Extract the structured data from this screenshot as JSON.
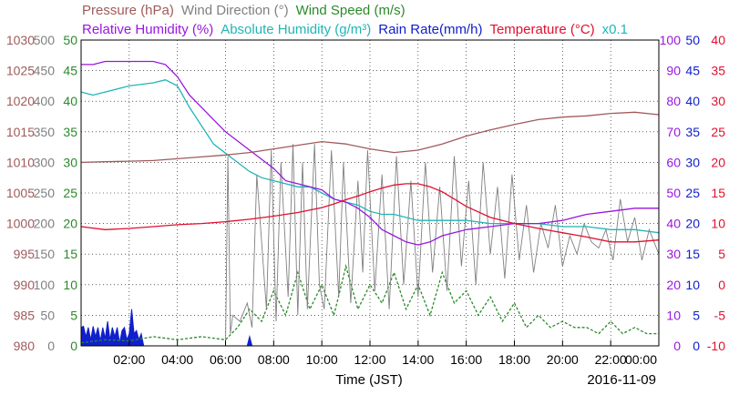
{
  "chart_data": {
    "type": "line",
    "xlabel": "Time (JST)",
    "date_label": "2016-11-09",
    "x_ticks": [
      "02:00",
      "04:00",
      "06:00",
      "08:00",
      "10:00",
      "12:00",
      "14:00",
      "16:00",
      "18:00",
      "20:00",
      "22:00",
      "00:00"
    ],
    "x_range_hours": [
      0,
      24
    ],
    "legend_row1": [
      {
        "text": "Pressure (hPa)",
        "color": "#a05a5a"
      },
      {
        "text": "Wind Direction (°)",
        "color": "#808080"
      },
      {
        "text": "Wind Speed (m/s)",
        "color": "#2a8a2a"
      }
    ],
    "legend_row2": [
      {
        "text": "Relative Humidity (%)",
        "color": "#9a16e0"
      },
      {
        "text": "Absolute Humidity (g/m³)",
        "color": "#22b5b5"
      },
      {
        "text": "Rain Rate(mm/h)",
        "color": "#1020cc"
      },
      {
        "text": "Temperature (°C)",
        "color": "#e01030"
      },
      {
        "text": "x0.1",
        "color": "#22b5b5"
      }
    ],
    "left_axes": [
      {
        "name": "pressure",
        "color": "#a05a5a",
        "ticks": [
          "1030",
          "1025",
          "1020",
          "1015",
          "1010",
          "1005",
          "1000",
          "995",
          "990",
          "985",
          "980"
        ],
        "range": [
          980,
          1030
        ]
      },
      {
        "name": "wind-direction",
        "color": "#808080",
        "ticks": [
          "500",
          "450",
          "400",
          "350",
          "300",
          "250",
          "200",
          "150",
          "100",
          "50",
          "0"
        ],
        "range": [
          0,
          500
        ]
      },
      {
        "name": "wind-speed",
        "color": "#2a8a2a",
        "ticks": [
          "50",
          "45",
          "40",
          "35",
          "30",
          "25",
          "20",
          "15",
          "10",
          "5",
          "0"
        ],
        "range": [
          0,
          50
        ]
      }
    ],
    "right_axes": [
      {
        "name": "humidity",
        "color": "#9a16e0",
        "ticks": [
          "100",
          "90",
          "80",
          "70",
          "60",
          "50",
          "40",
          "30",
          "20",
          "10",
          "0"
        ],
        "range": [
          0,
          100
        ]
      },
      {
        "name": "rain-rate",
        "color": "#1020cc",
        "ticks": [
          "50",
          "45",
          "40",
          "35",
          "30",
          "25",
          "20",
          "15",
          "10",
          "5",
          "0"
        ],
        "range": [
          0,
          50
        ]
      },
      {
        "name": "temperature",
        "color": "#e01030",
        "ticks": [
          "40",
          "35",
          "30",
          "25",
          "20",
          "15",
          "10",
          "5",
          "0",
          "-5",
          "-10"
        ],
        "range": [
          -10,
          40
        ]
      }
    ],
    "grid": true,
    "series": [
      {
        "name": "Pressure (hPa)",
        "axis": "pressure",
        "color": "#a05a5a",
        "style": "solid",
        "x": [
          0,
          1,
          2,
          3,
          4,
          5,
          6,
          7,
          8,
          9,
          10,
          11,
          12,
          13,
          14,
          15,
          16,
          17,
          18,
          19,
          20,
          21,
          22,
          23,
          24
        ],
        "y": [
          1010.0,
          1010.1,
          1010.2,
          1010.3,
          1010.6,
          1010.9,
          1011.2,
          1011.6,
          1012.2,
          1012.8,
          1013.4,
          1013.0,
          1012.2,
          1011.6,
          1012.0,
          1013.0,
          1014.3,
          1015.3,
          1016.2,
          1017.0,
          1017.4,
          1017.6,
          1018.0,
          1018.2,
          1017.8
        ]
      },
      {
        "name": "Relative Humidity (%)",
        "axis": "humidity",
        "color": "#9a16e0",
        "style": "solid",
        "x": [
          0,
          0.5,
          1,
          2,
          3,
          3.5,
          4,
          4.5,
          5,
          5.5,
          6,
          6.5,
          7,
          7.5,
          8,
          8.5,
          9,
          9.5,
          10,
          10.5,
          11,
          11.5,
          12,
          12.5,
          13,
          13.5,
          14,
          14.5,
          15,
          16,
          17,
          18,
          19,
          20,
          21,
          22,
          23,
          24
        ],
        "y": [
          92,
          92,
          93,
          93,
          93,
          92,
          88,
          82,
          78,
          74,
          70,
          67,
          64,
          61,
          58,
          54,
          53,
          52,
          51,
          48,
          47,
          45,
          42,
          38,
          36,
          34,
          33,
          34,
          36,
          38,
          39,
          40,
          40,
          41,
          43,
          44,
          45,
          45
        ]
      },
      {
        "name": "Absolute Humidity (g/m³)",
        "axis": "humidity",
        "color": "#22b5b5",
        "style": "solid",
        "x": [
          0,
          0.5,
          1,
          2,
          3,
          3.5,
          4,
          4.5,
          5,
          5.5,
          6,
          6.5,
          7,
          7.5,
          8,
          8.5,
          9,
          9.5,
          10,
          10.5,
          11,
          11.5,
          12,
          12.5,
          13,
          13.5,
          14,
          14.5,
          15,
          16,
          17,
          18,
          19,
          20,
          21,
          22,
          23,
          24
        ],
        "y": [
          83,
          82,
          83,
          85,
          86,
          87,
          85,
          78,
          72,
          66,
          63,
          60,
          57,
          55,
          54,
          53,
          52,
          52,
          50,
          48,
          47,
          46,
          44,
          43,
          43,
          42,
          41,
          41,
          41,
          41,
          40,
          40,
          40,
          39,
          39,
          38,
          38,
          37
        ]
      },
      {
        "name": "Temperature (°C)",
        "axis": "temperature",
        "color": "#e01030",
        "style": "solid",
        "x": [
          0,
          1,
          2,
          3,
          4,
          5,
          6,
          7,
          8,
          9,
          10,
          10.5,
          11,
          11.5,
          12,
          12.5,
          13,
          13.5,
          14,
          14.5,
          15,
          15.5,
          16,
          17,
          18,
          19,
          20,
          21,
          22,
          23,
          24
        ],
        "y": [
          9.5,
          9.0,
          9.2,
          9.5,
          9.8,
          10.0,
          10.3,
          10.7,
          11.2,
          11.8,
          12.6,
          13.2,
          13.9,
          14.5,
          15.2,
          15.8,
          16.3,
          16.5,
          16.5,
          16.0,
          15.2,
          14.0,
          12.8,
          11.0,
          10.0,
          9.2,
          8.5,
          7.8,
          7.0,
          7.0,
          7.3
        ]
      },
      {
        "name": "Wind Direction (°)",
        "axis": "wind-direction",
        "color": "#808080",
        "style": "solid",
        "x": [
          0,
          6.0,
          6.1,
          6.2,
          6.3,
          6.6,
          6.9,
          7.1,
          7.3,
          7.7,
          7.9,
          8.1,
          8.3,
          8.6,
          8.8,
          9.0,
          9.2,
          9.4,
          9.7,
          9.9,
          10.1,
          10.4,
          10.7,
          10.9,
          11.2,
          11.5,
          11.7,
          11.9,
          12.2,
          12.5,
          12.8,
          13.1,
          13.4,
          13.7,
          14.0,
          14.3,
          14.6,
          14.9,
          15.2,
          15.5,
          15.8,
          16.1,
          16.4,
          16.7,
          17.0,
          17.3,
          17.6,
          17.9,
          18.2,
          18.5,
          18.8,
          19.1,
          19.4,
          19.7,
          20.0,
          20.3,
          20.6,
          20.9,
          21.2,
          21.5,
          21.8,
          22.1,
          22.4,
          22.7,
          23.0,
          23.3,
          23.6,
          24.0
        ],
        "y": [
          0,
          0,
          310,
          20,
          50,
          40,
          70,
          30,
          280,
          60,
          320,
          40,
          300,
          80,
          330,
          50,
          300,
          60,
          330,
          100,
          60,
          320,
          80,
          300,
          70,
          270,
          120,
          320,
          90,
          280,
          60,
          310,
          100,
          270,
          80,
          300,
          120,
          260,
          90,
          310,
          130,
          270,
          100,
          300,
          150,
          260,
          110,
          280,
          140,
          230,
          120,
          200,
          160,
          230,
          130,
          180,
          150,
          200,
          170,
          160,
          190,
          140,
          240,
          170,
          210,
          140,
          190,
          150
        ]
      },
      {
        "name": "Wind Speed (m/s)",
        "axis": "wind-speed",
        "color": "#2a8a2a",
        "style": "dashed",
        "x": [
          0,
          1,
          2,
          3,
          4,
          5,
          6,
          6.5,
          7,
          7.5,
          8,
          8.5,
          9,
          9.5,
          10,
          10.5,
          11,
          11.5,
          12,
          12.5,
          13,
          13.5,
          14,
          14.5,
          15,
          15.5,
          16,
          16.5,
          17,
          17.5,
          18,
          18.5,
          19,
          19.5,
          20,
          20.5,
          21,
          21.5,
          22,
          22.5,
          23,
          23.5,
          24
        ],
        "y": [
          0.5,
          1.0,
          0.8,
          1.5,
          1.0,
          1.5,
          1.0,
          3,
          6,
          4,
          9,
          5,
          12,
          6,
          10,
          5,
          13,
          6,
          10,
          7,
          12,
          6,
          10,
          5,
          12,
          7,
          9,
          5,
          8,
          4,
          7,
          3,
          5,
          3,
          4,
          3,
          3,
          2,
          4,
          2,
          3,
          2,
          2
        ]
      },
      {
        "name": "Rain Rate(mm/h)",
        "axis": "rain-rate",
        "color": "#1020cc",
        "style": "fill",
        "x": [
          0.0,
          0.1,
          0.2,
          0.3,
          0.4,
          0.5,
          0.6,
          0.7,
          0.8,
          0.9,
          1.0,
          1.1,
          1.2,
          1.3,
          1.4,
          1.5,
          1.6,
          1.7,
          1.8,
          1.9,
          2.0,
          2.1,
          2.2,
          2.3,
          2.4,
          2.5,
          2.6,
          6.9,
          7.0,
          7.1
        ],
        "y": [
          3.0,
          3.2,
          1.5,
          3.0,
          1.0,
          3.2,
          1.5,
          3.0,
          0.8,
          3.0,
          1.2,
          4.0,
          1.0,
          3.0,
          1.5,
          3.0,
          0.5,
          2.5,
          3.0,
          1.0,
          2.0,
          6.0,
          2.0,
          2.5,
          1.0,
          2.0,
          0,
          0,
          1.5,
          0
        ]
      }
    ]
  }
}
